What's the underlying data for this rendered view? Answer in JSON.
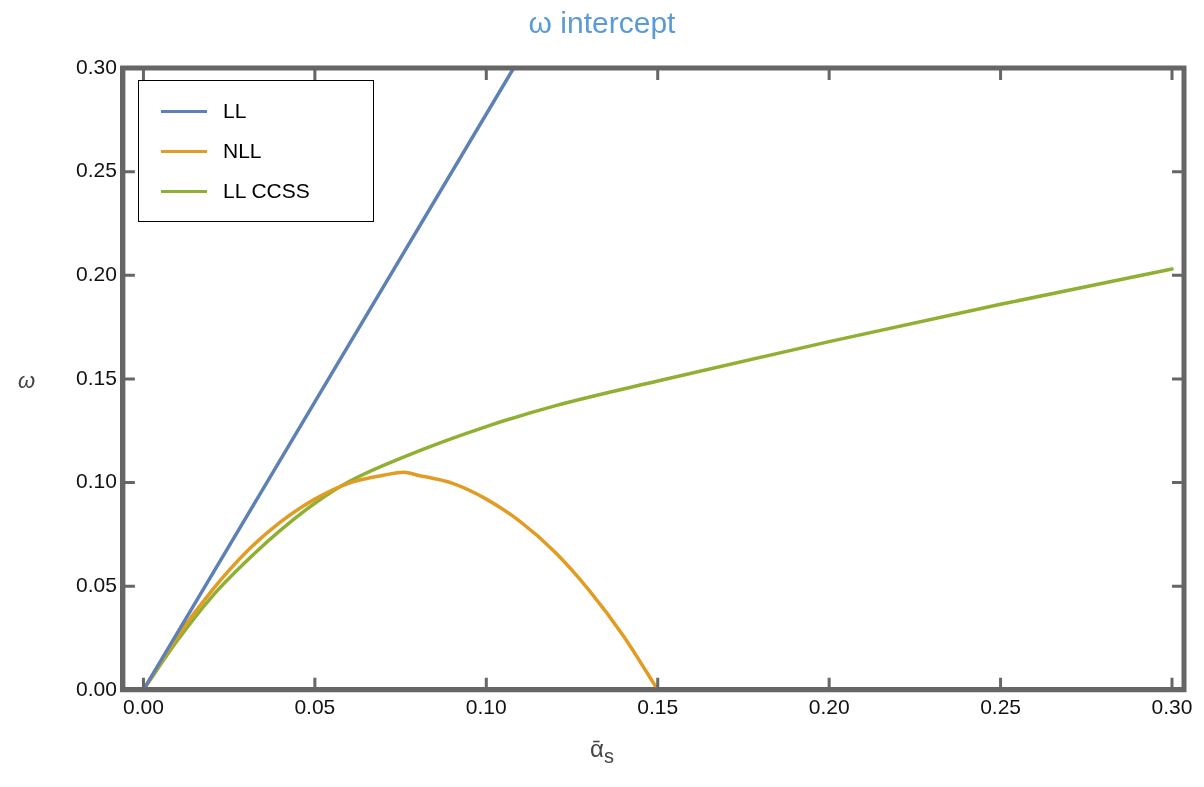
{
  "chart_data": {
    "type": "line",
    "title": "ω intercept",
    "xlabel": "ᾱ$_{s}$",
    "ylabel": "ω",
    "xlim": [
      -0.006,
      0.3035
    ],
    "ylim": [
      0,
      0.3
    ],
    "xticks": [
      {
        "value": 0,
        "label": "0.00"
      },
      {
        "value": 0.05,
        "label": "0.05"
      },
      {
        "value": 0.1,
        "label": "0.10"
      },
      {
        "value": 0.15,
        "label": "0.15"
      },
      {
        "value": 0.2,
        "label": "0.20"
      },
      {
        "value": 0.25,
        "label": "0.25"
      },
      {
        "value": 0.3,
        "label": "0.30"
      }
    ],
    "yticks": [
      {
        "value": 0,
        "label": "0.00"
      },
      {
        "value": 0.05,
        "label": "0.05"
      },
      {
        "value": 0.1,
        "label": "0.10"
      },
      {
        "value": 0.15,
        "label": "0.15"
      },
      {
        "value": 0.2,
        "label": "0.20"
      },
      {
        "value": 0.25,
        "label": "0.25"
      },
      {
        "value": 0.3,
        "label": "0.30"
      }
    ],
    "grid": false,
    "legend": "top left",
    "marker": "none",
    "line_style": "solid",
    "series": [
      {
        "name": "LL",
        "color": "#5e81b5",
        "x": [
          0,
          0.108
        ],
        "values": [
          0,
          0.3
        ]
      },
      {
        "name": "NLL",
        "color": "#e19c24",
        "x": [
          0,
          0.01,
          0.02,
          0.03,
          0.04,
          0.05,
          0.06,
          0.07,
          0.076,
          0.08,
          0.09,
          0.1,
          0.11,
          0.12,
          0.13,
          0.14,
          0.15
        ],
        "values": [
          0,
          0.026,
          0.048,
          0.0665,
          0.081,
          0.092,
          0.0997,
          0.1035,
          0.105,
          0.1035,
          0.0997,
          0.092,
          0.081,
          0.0665,
          0.048,
          0.026,
          0
        ]
      },
      {
        "name": "LL CCSS",
        "color": "#8fb032",
        "x": [
          0,
          0.01,
          0.02,
          0.03,
          0.04,
          0.05,
          0.06,
          0.08,
          0.1,
          0.12,
          0.15,
          0.2,
          0.25,
          0.3
        ],
        "values": [
          0,
          0.024,
          0.045,
          0.062,
          0.077,
          0.09,
          0.1005,
          0.115,
          0.127,
          0.137,
          0.149,
          0.168,
          0.186,
          0.203
        ]
      }
    ]
  }
}
